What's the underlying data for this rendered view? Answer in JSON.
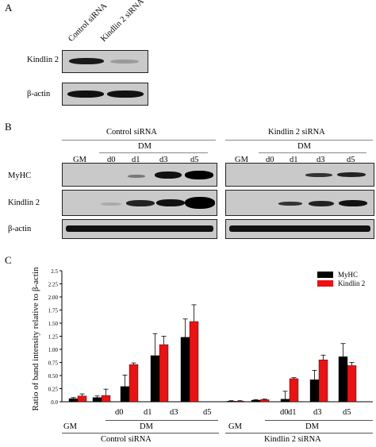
{
  "panel_a": {
    "letter": "A",
    "lanes": [
      "Control siRNA",
      "Kindlin 2 siRNA"
    ],
    "rows": [
      "Kindlin 2",
      "β-actin"
    ]
  },
  "panel_b": {
    "letter": "B",
    "groups": [
      "Control siRNA",
      "Kindlin 2 siRNA"
    ],
    "gm_label": "GM",
    "dm_label": "DM",
    "days": [
      "d0",
      "d1",
      "d3",
      "d5"
    ],
    "rows": [
      "MyHC",
      "Kindlin 2",
      "β-actin"
    ]
  },
  "panel_c": {
    "letter": "C",
    "groups": [
      "Control siRNA",
      "Kindlin 2 siRNA"
    ],
    "gm_label": "GM",
    "dm_label": "DM",
    "days": [
      "d0",
      "d1",
      "d3",
      "d5"
    ]
  },
  "chart_data": {
    "type": "bar",
    "ylabel": "Ratio of band intensity relative to β-actin",
    "ylim": [
      0,
      2.5
    ],
    "yticks": [
      "0.0",
      "0.25",
      "0.50",
      "0.75",
      "1.00",
      "1.25",
      "1.50",
      "1.75",
      "2.00",
      "2.25",
      "2.5"
    ],
    "categories": [
      "GM",
      "d0",
      "d1",
      "d3",
      "d5",
      "GM",
      "d0",
      "d1",
      "d3",
      "d5"
    ],
    "legend_position": "top-right",
    "series": [
      {
        "name": "MyHC",
        "color": "#000000",
        "values": [
          0.06,
          0.08,
          0.29,
          0.88,
          1.23,
          0.01,
          0.03,
          0.05,
          0.42,
          0.86
        ],
        "errors": [
          0.02,
          0.03,
          0.22,
          0.42,
          0.35,
          0.01,
          0.01,
          0.15,
          0.18,
          0.25
        ]
      },
      {
        "name": "Kindlin 2",
        "color": "#ee1111",
        "values": [
          0.11,
          0.12,
          0.71,
          1.09,
          1.53,
          0.01,
          0.04,
          0.44,
          0.8,
          0.69
        ],
        "errors": [
          0.04,
          0.12,
          0.03,
          0.16,
          0.32,
          0.01,
          0.01,
          0.02,
          0.09,
          0.06
        ]
      }
    ]
  }
}
